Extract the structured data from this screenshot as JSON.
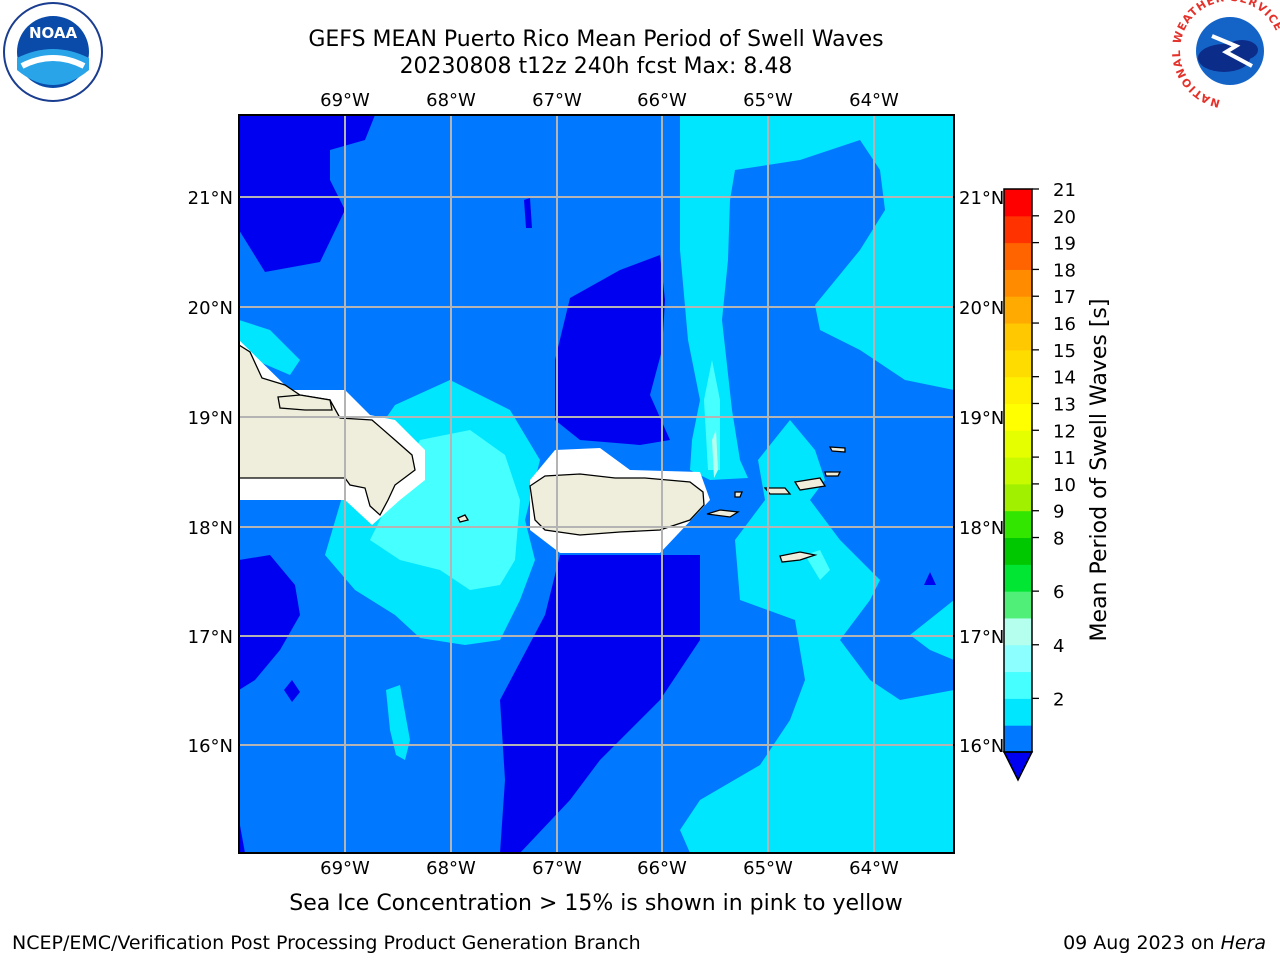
{
  "title": {
    "line1": "GEFS MEAN Puerto Rico Mean Period of Swell Waves",
    "line2": "20230808 t12z 240h fcst   Max: 8.48"
  },
  "map": {
    "lon_labels": [
      "69°W",
      "68°W",
      "67°W",
      "66°W",
      "65°W",
      "64°W"
    ],
    "lat_labels": [
      "21°N",
      "20°N",
      "19°N",
      "18°N",
      "17°N",
      "16°N"
    ],
    "colors": {
      "level_2_4": "#0078ff",
      "below_2": "#0000f0",
      "level_4_6": "#00e6ff",
      "level_6_8": "#46ffff",
      "land": "#efeedc",
      "grid": "#b4b4b4"
    }
  },
  "colorbar": {
    "label": "Mean Period of Swell Waves [s]",
    "ticks": [
      "21",
      "20",
      "19",
      "18",
      "17",
      "16",
      "15",
      "14",
      "13",
      "12",
      "11",
      "10",
      "9",
      "8",
      "6",
      "4",
      "2"
    ],
    "colors": [
      "#0078ff",
      "#00e6ff",
      "#46ffff",
      "#8cffff",
      "#b4ffee",
      "#50f078",
      "#00e632",
      "#00c800",
      "#32e600",
      "#a0f000",
      "#c8fa00",
      "#e6ff00",
      "#ffff00",
      "#fff000",
      "#ffdc00",
      "#ffc800",
      "#ffaa00",
      "#ff8c00",
      "#ff6400",
      "#ff3200",
      "#ff0000"
    ]
  },
  "note": "Sea Ice Concentration > 15% is shown in pink to yellow",
  "footer": {
    "left": "NCEP/EMC/Verification Post Processing Product Generation Branch",
    "date": "09 Aug 2023 on ",
    "machine": "Hera"
  },
  "logos": {
    "noaa": "NOAA",
    "nws_ring": "NATIONAL WEATHER SERVICE"
  }
}
